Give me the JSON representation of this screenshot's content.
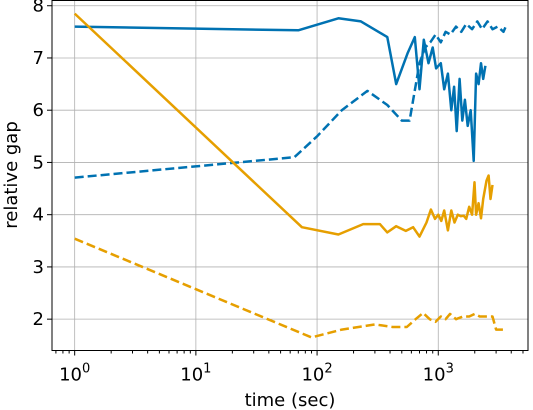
{
  "chart_data": {
    "type": "line",
    "title": "",
    "xlabel": "time (sec)",
    "ylabel": "relative gap",
    "xscale": "log",
    "xlim": [
      0.65,
      5500
    ],
    "ylim": [
      1.4,
      8.1
    ],
    "grid": true,
    "legend": "none",
    "x_ticks": [
      {
        "value": 1,
        "base": "10",
        "exp": "0"
      },
      {
        "value": 10,
        "base": "10",
        "exp": "1"
      },
      {
        "value": 100,
        "base": "10",
        "exp": "2"
      },
      {
        "value": 1000,
        "base": "10",
        "exp": "3"
      }
    ],
    "y_ticks": [
      2,
      3,
      4,
      5,
      6,
      7,
      8
    ],
    "series": [
      {
        "color": "#0072b2",
        "dash": "solid",
        "points": [
          [
            1,
            7.6
          ],
          [
            70,
            7.53
          ],
          [
            150,
            7.76
          ],
          [
            230,
            7.7
          ],
          [
            380,
            7.4
          ],
          [
            450,
            6.5
          ],
          [
            560,
            7.1
          ],
          [
            640,
            7.4
          ],
          [
            700,
            6.4
          ],
          [
            760,
            7.35
          ],
          [
            830,
            6.9
          ],
          [
            900,
            7.2
          ],
          [
            960,
            6.8
          ],
          [
            1050,
            6.9
          ],
          [
            1120,
            6.4
          ],
          [
            1200,
            6.7
          ],
          [
            1280,
            6.0
          ],
          [
            1350,
            6.45
          ],
          [
            1420,
            5.6
          ],
          [
            1500,
            6.6
          ],
          [
            1580,
            5.8
          ],
          [
            1660,
            6.2
          ],
          [
            1750,
            5.7
          ],
          [
            1850,
            6.0
          ],
          [
            1960,
            5.03
          ],
          [
            2050,
            6.7
          ],
          [
            2150,
            6.5
          ],
          [
            2250,
            6.9
          ],
          [
            2350,
            6.6
          ],
          [
            2450,
            6.85
          ]
        ]
      },
      {
        "color": "#0072b2",
        "dash": "dashed",
        "points": [
          [
            1,
            4.71
          ],
          [
            65,
            5.1
          ],
          [
            100,
            5.5
          ],
          [
            160,
            6.0
          ],
          [
            260,
            6.37
          ],
          [
            380,
            6.1
          ],
          [
            500,
            5.8
          ],
          [
            580,
            5.8
          ],
          [
            700,
            6.9
          ],
          [
            780,
            7.2
          ],
          [
            860,
            7.3
          ],
          [
            950,
            7.45
          ],
          [
            1050,
            7.3
          ],
          [
            1150,
            7.5
          ],
          [
            1260,
            7.45
          ],
          [
            1400,
            7.6
          ],
          [
            1550,
            7.5
          ],
          [
            1700,
            7.65
          ],
          [
            1900,
            7.55
          ],
          [
            2100,
            7.7
          ],
          [
            2300,
            7.55
          ],
          [
            2550,
            7.7
          ],
          [
            2800,
            7.55
          ],
          [
            3100,
            7.6
          ],
          [
            3450,
            7.5
          ],
          [
            3600,
            7.6
          ]
        ]
      },
      {
        "color": "#e69f00",
        "dash": "solid",
        "points": [
          [
            1,
            7.85
          ],
          [
            75,
            3.76
          ],
          [
            150,
            3.62
          ],
          [
            240,
            3.82
          ],
          [
            330,
            3.82
          ],
          [
            380,
            3.66
          ],
          [
            450,
            3.78
          ],
          [
            540,
            3.69
          ],
          [
            620,
            3.76
          ],
          [
            700,
            3.58
          ],
          [
            800,
            3.85
          ],
          [
            870,
            4.1
          ],
          [
            940,
            3.92
          ],
          [
            1000,
            4.0
          ],
          [
            1060,
            3.88
          ],
          [
            1120,
            4.08
          ],
          [
            1200,
            3.7
          ],
          [
            1280,
            4.08
          ],
          [
            1360,
            3.85
          ],
          [
            1450,
            4.0
          ],
          [
            1540,
            3.97
          ],
          [
            1620,
            3.98
          ],
          [
            1700,
            3.92
          ],
          [
            1800,
            4.15
          ],
          [
            1900,
            4.0
          ],
          [
            1990,
            4.62
          ],
          [
            2050,
            4.0
          ],
          [
            2150,
            4.22
          ],
          [
            2250,
            3.93
          ],
          [
            2350,
            4.3
          ],
          [
            2500,
            4.65
          ],
          [
            2600,
            4.75
          ],
          [
            2700,
            4.3
          ],
          [
            2800,
            4.57
          ]
        ]
      },
      {
        "color": "#e69f00",
        "dash": "dashed",
        "points": [
          [
            1,
            3.54
          ],
          [
            90,
            1.65
          ],
          [
            160,
            1.8
          ],
          [
            300,
            1.9
          ],
          [
            420,
            1.85
          ],
          [
            550,
            1.85
          ],
          [
            650,
            2.0
          ],
          [
            750,
            2.12
          ],
          [
            850,
            2.0
          ],
          [
            950,
            1.95
          ],
          [
            1050,
            2.05
          ],
          [
            1150,
            2.0
          ],
          [
            1250,
            2.1
          ],
          [
            1400,
            2.0
          ],
          [
            1600,
            2.05
          ],
          [
            1800,
            2.05
          ],
          [
            2000,
            2.1
          ],
          [
            2200,
            2.05
          ],
          [
            2500,
            2.05
          ],
          [
            2800,
            2.05
          ],
          [
            3000,
            1.8
          ],
          [
            3500,
            1.8
          ]
        ]
      }
    ]
  }
}
